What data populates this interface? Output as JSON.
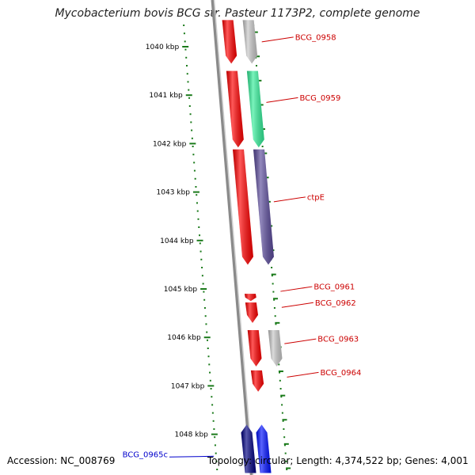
{
  "title": "Mycobacterium bovis BCG str. Pasteur 1173P2, complete genome",
  "footer": {
    "accession": "Accession: NC_008769",
    "summary": "Topology: circular; Length: 4,374,522 bp; Genes: 4,001"
  },
  "colors": {
    "backbone": "#8a8a8a",
    "tick": "#1a7a1a",
    "cds_red": "#ff0000",
    "gene_grey": "#c8c8c8",
    "gene_green": "#33ee99",
    "gene_purple": "#5a4a9a",
    "gene_blue": "#0010ff",
    "gene_navy": "#000080",
    "label_red": "#cc0000",
    "label_blue": "#0000cc"
  },
  "axis": {
    "unit": "kbp",
    "ticks": [
      {
        "value": 1040,
        "label": "1040 kbp"
      },
      {
        "value": 1041,
        "label": "1041 kbp"
      },
      {
        "value": 1042,
        "label": "1042 kbp"
      },
      {
        "value": 1043,
        "label": "1043 kbp"
      },
      {
        "value": 1044,
        "label": "1044 kbp"
      },
      {
        "value": 1045,
        "label": "1045 kbp"
      },
      {
        "value": 1046,
        "label": "1046 kbp"
      },
      {
        "value": 1047,
        "label": "1047 kbp"
      },
      {
        "value": 1048,
        "label": "1048 kbp"
      }
    ]
  },
  "features": [
    {
      "name": "BCG_0958",
      "start": 1039.45,
      "end": 1040.35,
      "strand": "-",
      "track": "cds",
      "color": "cds_red"
    },
    {
      "name": "BCG_0958",
      "start": 1039.45,
      "end": 1040.35,
      "strand": "-",
      "track": "gene",
      "color": "gene_grey"
    },
    {
      "name": "BCG_0959",
      "start": 1040.5,
      "end": 1042.08,
      "strand": "-",
      "track": "cds",
      "color": "cds_red"
    },
    {
      "name": "BCG_0959",
      "start": 1040.5,
      "end": 1042.08,
      "strand": "-",
      "track": "gene",
      "color": "gene_green"
    },
    {
      "name": "ctpE",
      "start": 1042.12,
      "end": 1044.5,
      "strand": "-",
      "track": "cds",
      "color": "cds_red"
    },
    {
      "name": "ctpE",
      "start": 1042.12,
      "end": 1044.5,
      "strand": "-",
      "track": "gene",
      "color": "gene_purple"
    },
    {
      "name": "BCG_0961",
      "start": 1045.1,
      "end": 1045.25,
      "strand": "-",
      "track": "cds",
      "color": "cds_red"
    },
    {
      "name": "BCG_0962",
      "start": 1045.28,
      "end": 1045.7,
      "strand": "-",
      "track": "cds",
      "color": "cds_red"
    },
    {
      "name": "BCG_0963",
      "start": 1045.85,
      "end": 1046.6,
      "strand": "-",
      "track": "cds",
      "color": "cds_red"
    },
    {
      "name": "BCG_0963",
      "start": 1045.85,
      "end": 1046.6,
      "strand": "-",
      "track": "gene",
      "color": "gene_grey"
    },
    {
      "name": "BCG_0964",
      "start": 1046.68,
      "end": 1047.12,
      "strand": "-",
      "track": "cds",
      "color": "cds_red"
    },
    {
      "name": "BCG_0965c",
      "start": 1047.8,
      "end": 1048.8,
      "strand": "+",
      "track": "cds_left",
      "color": "gene_navy"
    },
    {
      "name": "BCG_0965c",
      "start": 1047.8,
      "end": 1048.8,
      "strand": "+",
      "track": "cds_left2",
      "color": "gene_blue"
    }
  ],
  "labels": [
    {
      "text": "BCG_0958",
      "at": 1039.9,
      "side": "right",
      "color": "label_red"
    },
    {
      "text": "BCG_0959",
      "at": 1041.15,
      "side": "right",
      "color": "label_red"
    },
    {
      "text": "ctpE",
      "at": 1043.2,
      "side": "right",
      "color": "label_red"
    },
    {
      "text": "BCG_0961",
      "at": 1045.05,
      "side": "right",
      "color": "label_red"
    },
    {
      "text": "BCG_0962",
      "at": 1045.38,
      "side": "right",
      "color": "label_red"
    },
    {
      "text": "BCG_0963",
      "at": 1046.13,
      "side": "right",
      "color": "label_red"
    },
    {
      "text": "BCG_0964",
      "at": 1046.82,
      "side": "right",
      "color": "label_red"
    },
    {
      "text": "BCG_0965c",
      "at": 1048.42,
      "side": "left",
      "color": "label_blue"
    }
  ]
}
